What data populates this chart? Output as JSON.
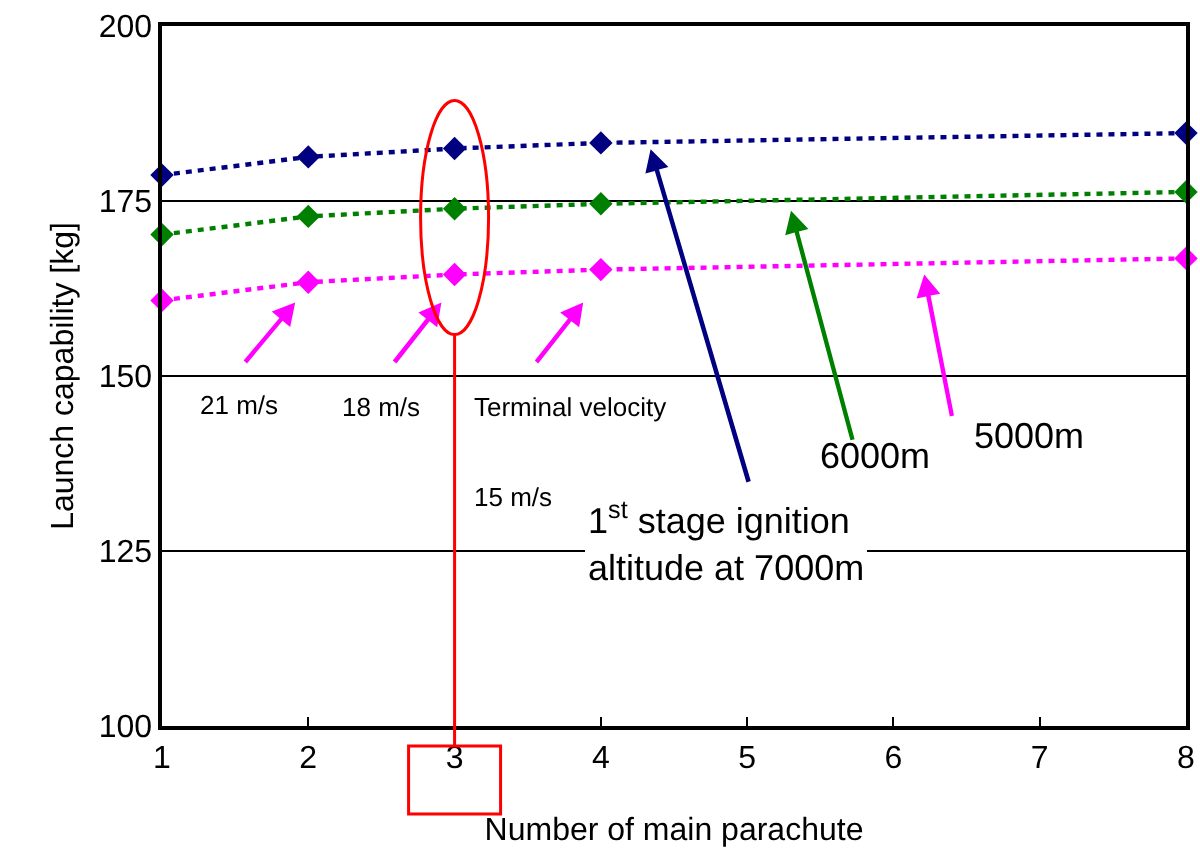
{
  "chart_data": {
    "type": "line",
    "xlabel": "Number of main parachute",
    "ylabel": "Launch capability [kg]",
    "x": [
      1,
      2,
      3,
      4,
      8
    ],
    "series": [
      {
        "color": "#000080",
        "values": [
          178.7,
          181.3,
          182.5,
          183.3,
          184.7
        ]
      },
      {
        "color": "#008000",
        "values": [
          170.2,
          172.8,
          173.9,
          174.6,
          176.3
        ]
      },
      {
        "color": "#ff00ff",
        "values": [
          160.8,
          163.4,
          164.5,
          165.2,
          166.8
        ]
      }
    ],
    "xlim": [
      1,
      8
    ],
    "xticks": [
      1,
      2,
      3,
      4,
      5,
      6,
      7,
      8
    ],
    "ylim": [
      100,
      200
    ],
    "yticks": [
      100,
      125,
      150,
      175,
      200
    ],
    "ref_lines": [
      {
        "axis": "x",
        "value": 3,
        "color": "#ff0000"
      }
    ],
    "grid": "y",
    "marker": "diamond",
    "line_style": "dotted",
    "annotations": [
      "21 m/s",
      "18 m/s",
      "Terminal velocity",
      "15 m/s",
      "1$^{st}$ stage ignition\naltitude at 7000m",
      "6000m",
      "5000m"
    ]
  }
}
